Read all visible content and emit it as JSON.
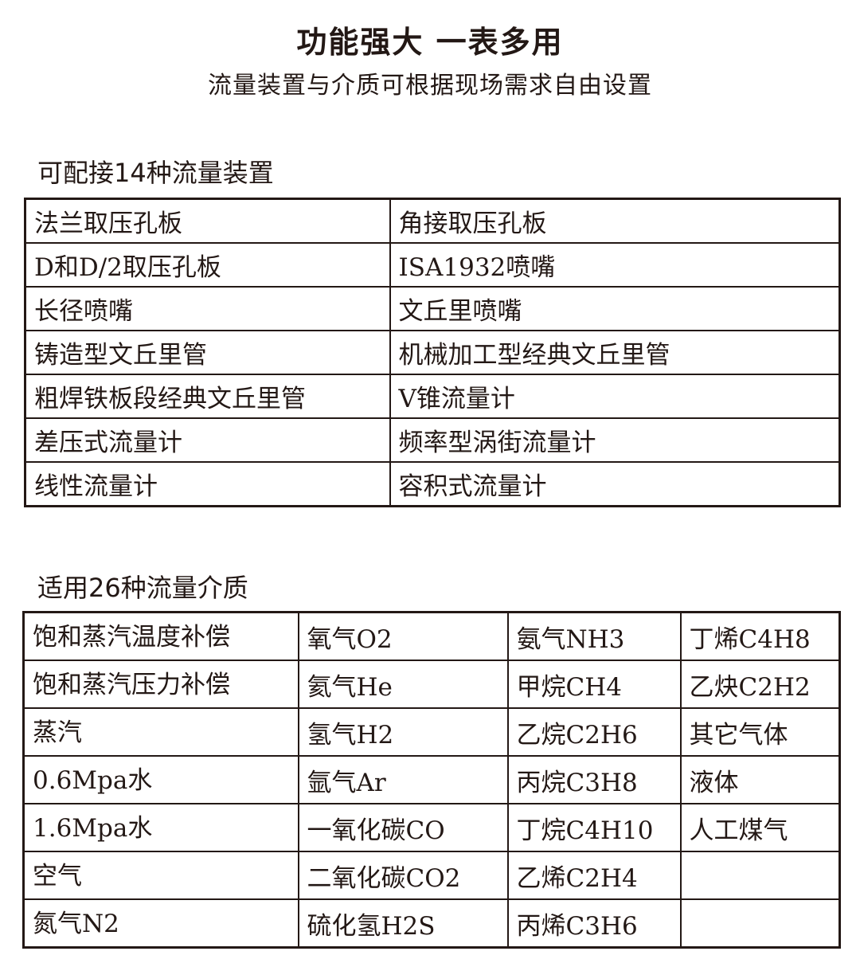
{
  "title": "功能强大  一表多用",
  "subtitle": "流量装置与介质可根据现场需求自由设置",
  "devices": {
    "heading": "可配接14种流量装置",
    "rows": [
      [
        "法兰取压孔板",
        "角接取压孔板"
      ],
      [
        "D和D/2取压孔板",
        "ISA1932喷嘴"
      ],
      [
        "长径喷嘴",
        "文丘里喷嘴"
      ],
      [
        "铸造型文丘里管",
        "机械加工型经典文丘里管"
      ],
      [
        "粗焊铁板段经典文丘里管",
        "V锥流量计"
      ],
      [
        "差压式流量计",
        "频率型涡街流量计"
      ],
      [
        "线性流量计",
        "容积式流量计"
      ]
    ]
  },
  "media": {
    "heading": "适用26种流量介质",
    "rows": [
      [
        "饱和蒸汽温度补偿",
        "氧气O2",
        "氨气NH3",
        "丁烯C4H8"
      ],
      [
        "饱和蒸汽压力补偿",
        "氦气He",
        "甲烷CH4",
        "乙炔C2H2"
      ],
      [
        "蒸汽",
        "氢气H2",
        "乙烷C2H6",
        "其它气体"
      ],
      [
        "0.6Mpa水",
        "氩气Ar",
        "丙烷C3H8",
        "液体"
      ],
      [
        "1.6Mpa水",
        "一氧化碳CO",
        "丁烷C4H10",
        "人工煤气"
      ],
      [
        "空气",
        "二氧化碳CO2",
        "乙烯C2H4",
        ""
      ],
      [
        "氮气N2",
        "硫化氢H2S",
        "丙烯C3H6",
        ""
      ]
    ]
  }
}
